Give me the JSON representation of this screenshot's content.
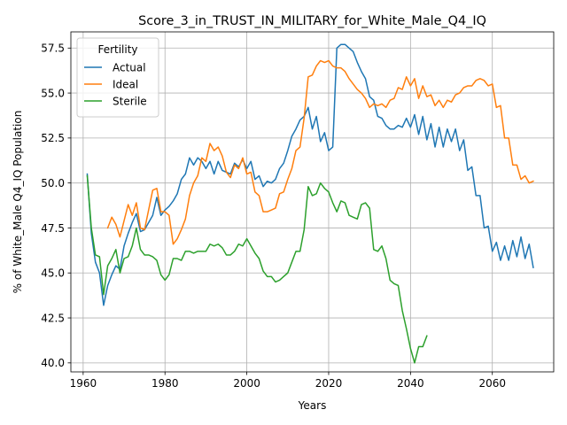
{
  "chart_data": {
    "type": "line",
    "title": "Score_3_in_TRUST_IN_MILITARY_for_White_Male_Q4_IQ",
    "xlabel": "Years",
    "ylabel": "% of White_Male Q4_IQ Population",
    "xlim": [
      1957,
      2075
    ],
    "ylim": [
      39.5,
      58.4
    ],
    "xticks": [
      1960,
      1980,
      2000,
      2020,
      2040,
      2060
    ],
    "yticks": [
      40.0,
      42.5,
      45.0,
      47.5,
      50.0,
      52.5,
      55.0,
      57.5
    ],
    "grid": true,
    "legend": {
      "title": "Fertility",
      "placement": "top-left"
    },
    "series": [
      {
        "name": "Actual",
        "color": "#1f77b4",
        "x": [
          1961,
          1962,
          1963,
          1964,
          1965,
          1966,
          1967,
          1968,
          1969,
          1970,
          1971,
          1972,
          1973,
          1974,
          1975,
          1976,
          1977,
          1978,
          1979,
          1980,
          1981,
          1982,
          1983,
          1984,
          1985,
          1986,
          1987,
          1988,
          1989,
          1990,
          1991,
          1992,
          1993,
          1994,
          1995,
          1996,
          1997,
          1998,
          1999,
          2000,
          2001,
          2002,
          2003,
          2004,
          2005,
          2006,
          2007,
          2008,
          2009,
          2010,
          2011,
          2012,
          2013,
          2014,
          2015,
          2016,
          2017,
          2018,
          2019,
          2020,
          2021,
          2022,
          2023,
          2024,
          2025,
          2026,
          2027,
          2028,
          2029,
          2030,
          2031,
          2032,
          2033,
          2034,
          2035,
          2036,
          2037,
          2038,
          2039,
          2040,
          2041,
          2042,
          2043,
          2044,
          2045,
          2046,
          2047,
          2048,
          2049,
          2050,
          2051,
          2052,
          2053,
          2054,
          2055,
          2056,
          2057,
          2058,
          2059,
          2060,
          2061,
          2062,
          2063,
          2064,
          2065,
          2066,
          2067,
          2068,
          2069,
          2070
        ],
        "values": [
          50.5,
          47.2,
          45.6,
          45.0,
          43.2,
          44.3,
          44.9,
          45.4,
          45.2,
          46.5,
          47.2,
          47.8,
          48.3,
          47.3,
          47.4,
          47.8,
          48.2,
          49.2,
          48.2,
          48.5,
          48.7,
          49.0,
          49.4,
          50.2,
          50.5,
          51.4,
          51.0,
          51.4,
          51.2,
          50.8,
          51.2,
          50.5,
          51.2,
          50.7,
          50.6,
          50.5,
          51.1,
          50.9,
          51.3,
          50.8,
          51.2,
          50.2,
          50.4,
          49.8,
          50.1,
          50.0,
          50.2,
          50.8,
          51.1,
          51.8,
          52.6,
          53.0,
          53.5,
          53.7,
          54.2,
          53.0,
          53.7,
          52.3,
          52.8,
          51.8,
          52.0,
          57.5,
          57.7,
          57.7,
          57.5,
          57.3,
          56.7,
          56.2,
          55.8,
          54.8,
          54.6,
          53.7,
          53.6,
          53.2,
          53.0,
          53.0,
          53.2,
          53.1,
          53.6,
          53.1,
          53.8,
          52.7,
          53.7,
          52.4,
          53.3,
          52.0,
          53.1,
          52.0,
          53.0,
          52.3,
          53.0,
          51.8,
          52.4,
          50.7,
          50.9,
          49.3,
          49.3,
          47.5,
          47.6,
          46.2,
          46.7,
          45.7,
          46.5,
          45.7,
          46.8,
          45.9,
          47.0,
          45.8,
          46.6,
          45.3
        ]
      },
      {
        "name": "Ideal",
        "color": "#ff7f0e",
        "x": [
          1966,
          1967,
          1968,
          1969,
          1970,
          1971,
          1972,
          1973,
          1974,
          1975,
          1976,
          1977,
          1978,
          1979,
          1980,
          1981,
          1982,
          1983,
          1984,
          1985,
          1986,
          1987,
          1988,
          1989,
          1990,
          1991,
          1992,
          1993,
          1994,
          1995,
          1996,
          1997,
          1998,
          1999,
          2000,
          2001,
          2002,
          2003,
          2004,
          2005,
          2006,
          2007,
          2008,
          2009,
          2010,
          2011,
          2012,
          2013,
          2014,
          2015,
          2016,
          2017,
          2018,
          2019,
          2020,
          2021,
          2022,
          2023,
          2024,
          2025,
          2026,
          2027,
          2028,
          2029,
          2030,
          2031,
          2032,
          2033,
          2034,
          2035,
          2036,
          2037,
          2038,
          2039,
          2040,
          2041,
          2042,
          2043,
          2044,
          2045,
          2046,
          2047,
          2048,
          2049,
          2050,
          2051,
          2052,
          2053,
          2054,
          2055,
          2056,
          2057,
          2058,
          2059,
          2060,
          2061,
          2062,
          2063,
          2064,
          2065,
          2066,
          2067,
          2068,
          2069,
          2070
        ],
        "values": [
          47.5,
          48.1,
          47.7,
          47.0,
          47.9,
          48.8,
          48.2,
          48.9,
          47.5,
          47.4,
          48.5,
          49.6,
          49.7,
          48.4,
          48.4,
          48.2,
          46.6,
          46.9,
          47.4,
          48.0,
          49.3,
          50.0,
          50.4,
          51.4,
          51.2,
          52.2,
          51.8,
          52.0,
          51.5,
          50.6,
          50.3,
          51.0,
          50.8,
          51.4,
          50.5,
          50.6,
          49.5,
          49.3,
          48.4,
          48.4,
          48.5,
          48.6,
          49.4,
          49.5,
          50.2,
          50.8,
          51.8,
          52.0,
          53.6,
          55.9,
          56.0,
          56.5,
          56.8,
          56.7,
          56.8,
          56.5,
          56.4,
          56.4,
          56.2,
          55.8,
          55.5,
          55.2,
          55.0,
          54.7,
          54.2,
          54.4,
          54.3,
          54.4,
          54.2,
          54.6,
          54.7,
          55.3,
          55.2,
          55.9,
          55.4,
          55.8,
          54.7,
          55.4,
          54.8,
          54.9,
          54.3,
          54.6,
          54.2,
          54.6,
          54.5,
          54.9,
          55.0,
          55.3,
          55.4,
          55.4,
          55.7,
          55.8,
          55.7,
          55.4,
          55.5,
          54.2,
          54.3,
          52.5,
          52.5,
          51.0,
          51.0,
          50.2,
          50.4,
          50.0,
          50.1
        ]
      },
      {
        "name": "Sterile",
        "color": "#2ca02c",
        "x": [
          1961,
          1962,
          1963,
          1964,
          1965,
          1966,
          1967,
          1968,
          1969,
          1970,
          1971,
          1972,
          1973,
          1974,
          1975,
          1976,
          1977,
          1978,
          1979,
          1980,
          1981,
          1982,
          1983,
          1984,
          1985,
          1986,
          1987,
          1988,
          1989,
          1990,
          1991,
          1992,
          1993,
          1994,
          1995,
          1996,
          1997,
          1998,
          1999,
          2000,
          2001,
          2002,
          2003,
          2004,
          2005,
          2006,
          2007,
          2008,
          2009,
          2010,
          2011,
          2012,
          2013,
          2014,
          2015,
          2016,
          2017,
          2018,
          2019,
          2020,
          2021,
          2022,
          2023,
          2024,
          2025,
          2026,
          2027,
          2028,
          2029,
          2030,
          2031,
          2032,
          2033,
          2034,
          2035,
          2036,
          2037,
          2038,
          2039,
          2040,
          2041,
          2042,
          2043,
          2044
        ],
        "values": [
          50.4,
          47.5,
          46.0,
          45.9,
          43.8,
          45.4,
          45.8,
          46.3,
          45.0,
          45.8,
          45.9,
          46.5,
          47.5,
          46.3,
          46.0,
          46.0,
          45.9,
          45.7,
          44.9,
          44.6,
          44.9,
          45.8,
          45.8,
          45.7,
          46.2,
          46.2,
          46.1,
          46.2,
          46.2,
          46.2,
          46.6,
          46.5,
          46.6,
          46.4,
          46.0,
          46.0,
          46.2,
          46.6,
          46.5,
          46.9,
          46.5,
          46.1,
          45.8,
          45.1,
          44.8,
          44.8,
          44.5,
          44.6,
          44.8,
          45.0,
          45.6,
          46.2,
          46.2,
          47.4,
          49.8,
          49.3,
          49.4,
          50.0,
          49.7,
          49.5,
          48.9,
          48.4,
          49.0,
          48.9,
          48.2,
          48.1,
          48.0,
          48.8,
          48.9,
          48.6,
          46.3,
          46.2,
          46.5,
          45.8,
          44.6,
          44.4,
          44.3,
          42.9,
          41.9,
          40.8,
          40.0,
          40.9,
          40.9,
          41.5
        ]
      }
    ]
  }
}
